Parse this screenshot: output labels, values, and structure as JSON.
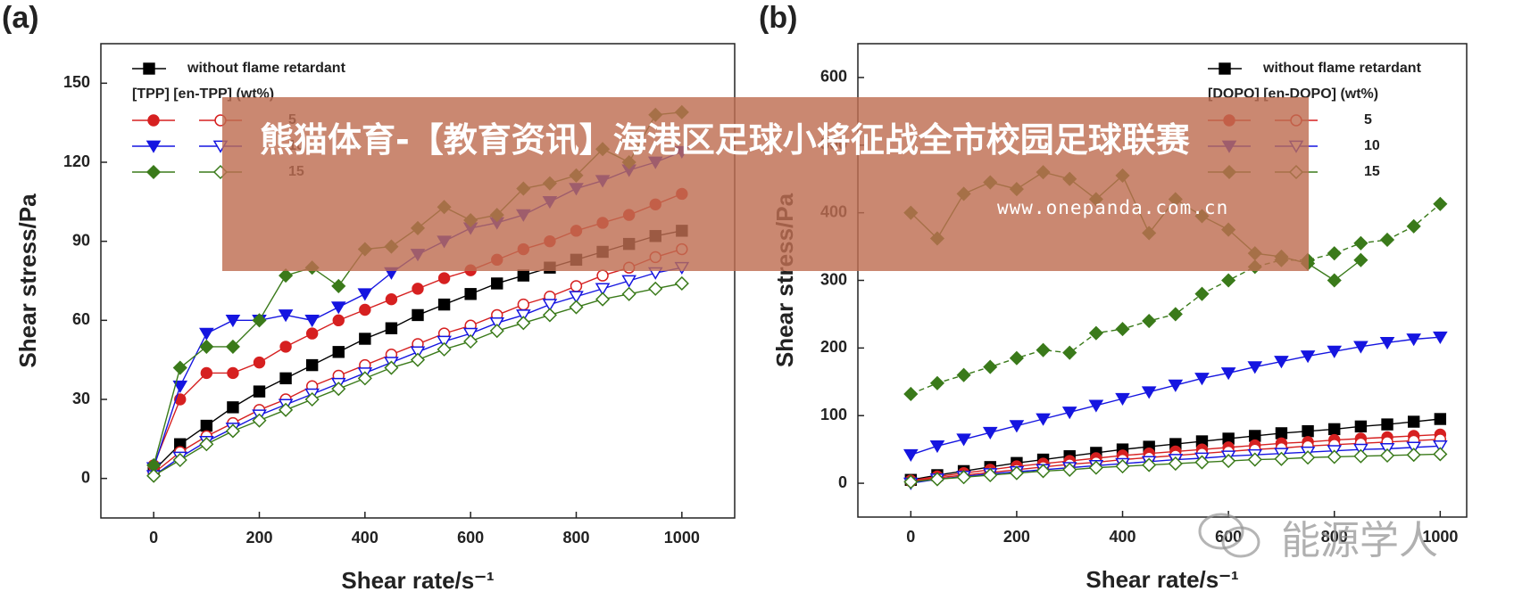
{
  "chart_data": [
    {
      "type": "scatter",
      "panel": "(a)",
      "xlabel": "Shear rate/s⁻¹",
      "ylabel": "Shear stress/Pa",
      "xlim": [
        -100,
        1100
      ],
      "ylim": [
        -15,
        165
      ],
      "xticks": [
        0,
        200,
        400,
        600,
        800,
        1000
      ],
      "yticks": [
        0,
        30,
        60,
        90,
        120,
        150
      ],
      "legend": "upper left",
      "legend_title": "[TPP]  [en-TPP]  (wt%)",
      "x": [
        0,
        50,
        100,
        150,
        200,
        250,
        300,
        350,
        400,
        450,
        500,
        550,
        600,
        650,
        700,
        750,
        800,
        850,
        900,
        950,
        1000
      ],
      "series": [
        {
          "name": "without flame retardant",
          "color": "#000000",
          "marker": "square",
          "values": [
            3,
            13,
            20,
            27,
            33,
            38,
            43,
            48,
            53,
            57,
            62,
            66,
            70,
            74,
            77,
            80,
            83,
            86,
            89,
            92,
            94
          ]
        },
        {
          "name": "5",
          "color": "#d62020",
          "marker": "circle",
          "values": [
            5,
            30,
            40,
            40,
            44,
            50,
            55,
            60,
            64,
            68,
            72,
            76,
            79,
            83,
            87,
            90,
            94,
            97,
            100,
            104,
            108
          ],
          "en_values": [
            2,
            10,
            16,
            21,
            26,
            30,
            35,
            39,
            43,
            47,
            51,
            55,
            58,
            62,
            66,
            69,
            73,
            77,
            80,
            84,
            87
          ]
        },
        {
          "name": "10",
          "color": "#1515e0",
          "marker": "triangle",
          "values": [
            4,
            35,
            55,
            60,
            60,
            62,
            60,
            65,
            70,
            78,
            85,
            90,
            95,
            97,
            100,
            105,
            110,
            113,
            117,
            120,
            124
          ],
          "en_values": [
            1,
            8,
            14,
            19,
            24,
            28,
            32,
            36,
            40,
            44,
            48,
            52,
            55,
            59,
            62,
            66,
            69,
            72,
            75,
            78,
            80
          ]
        },
        {
          "name": "15",
          "color": "#3a7a1a",
          "marker": "diamond",
          "values": [
            5,
            42,
            50,
            50,
            60,
            77,
            80,
            73,
            87,
            88,
            95,
            103,
            98,
            100,
            110,
            112,
            115,
            125,
            120,
            138,
            139
          ],
          "en_values": [
            1,
            7,
            13,
            18,
            22,
            26,
            30,
            34,
            38,
            42,
            45,
            49,
            52,
            56,
            59,
            62,
            65,
            68,
            70,
            72,
            74
          ]
        }
      ]
    },
    {
      "type": "scatter",
      "panel": "(b)",
      "xlabel": "Shear rate/s⁻¹",
      "ylabel": "Shear stress/Pa",
      "xlim": [
        -100,
        1050
      ],
      "ylim": [
        -50,
        650
      ],
      "xticks": [
        0,
        200,
        400,
        600,
        800,
        1000
      ],
      "yticks": [
        0,
        100,
        200,
        300,
        400,
        500,
        600
      ],
      "legend": "upper right",
      "legend_title": "[DOPO]  [en-DOPO] (wt%)",
      "x": [
        0,
        50,
        100,
        150,
        200,
        250,
        300,
        350,
        400,
        450,
        500,
        550,
        600,
        650,
        700,
        750,
        800,
        850,
        900,
        950,
        1000
      ],
      "series": [
        {
          "name": "without flame retardant",
          "color": "#000000",
          "marker": "square",
          "values": [
            5,
            12,
            18,
            24,
            30,
            35,
            40,
            45,
            50,
            54,
            58,
            62,
            66,
            70,
            74,
            77,
            80,
            84,
            87,
            91,
            95
          ]
        },
        {
          "name": "5",
          "color": "#d62020",
          "marker": "circle",
          "values": [
            4,
            10,
            15,
            20,
            25,
            29,
            33,
            37,
            41,
            44,
            47,
            50,
            53,
            56,
            59,
            61,
            64,
            66,
            68,
            70,
            72
          ],
          "en_values": [
            3,
            8,
            12,
            16,
            20,
            24,
            28,
            31,
            35,
            38,
            41,
            44,
            47,
            50,
            52,
            55,
            57,
            59,
            61,
            63,
            65
          ]
        },
        {
          "name": "10",
          "color": "#1515e0",
          "marker": "triangle",
          "values": [
            42,
            55,
            65,
            75,
            85,
            95,
            105,
            115,
            125,
            135,
            145,
            155,
            163,
            172,
            180,
            188,
            195,
            202,
            208,
            213,
            216
          ],
          "en_values": [
            0,
            6,
            10,
            14,
            17,
            20,
            23,
            26,
            29,
            32,
            35,
            37,
            40,
            42,
            44,
            46,
            48,
            50,
            51,
            53,
            55
          ]
        },
        {
          "name": "15",
          "color": "#3a7a1a",
          "marker": "diamond",
          "dashed": true,
          "values": [
            132,
            148,
            160,
            172,
            185,
            197,
            193,
            222,
            228,
            240,
            250,
            280,
            300,
            320,
            330,
            330,
            340,
            355,
            360,
            380,
            413
          ],
          "en_values": [
            2,
            6,
            9,
            12,
            15,
            18,
            20,
            23,
            25,
            27,
            29,
            31,
            33,
            35,
            36,
            38,
            39,
            40,
            41,
            42,
            43
          ]
        },
        {
          "color": "#3a7a1a",
          "marker": "diamond",
          "values": [
            400,
            362,
            428,
            445,
            435,
            460,
            450,
            420,
            455,
            370,
            420,
            395,
            375,
            340,
            335,
            325,
            300,
            330,
            null,
            null,
            null
          ]
        }
      ]
    }
  ],
  "banner": {
    "title": "熊猫体育-【教育资讯】海港区足球小将征战全市校园足球联赛",
    "url": "www.onepanda.com.cn"
  },
  "watermark": "能源学人"
}
